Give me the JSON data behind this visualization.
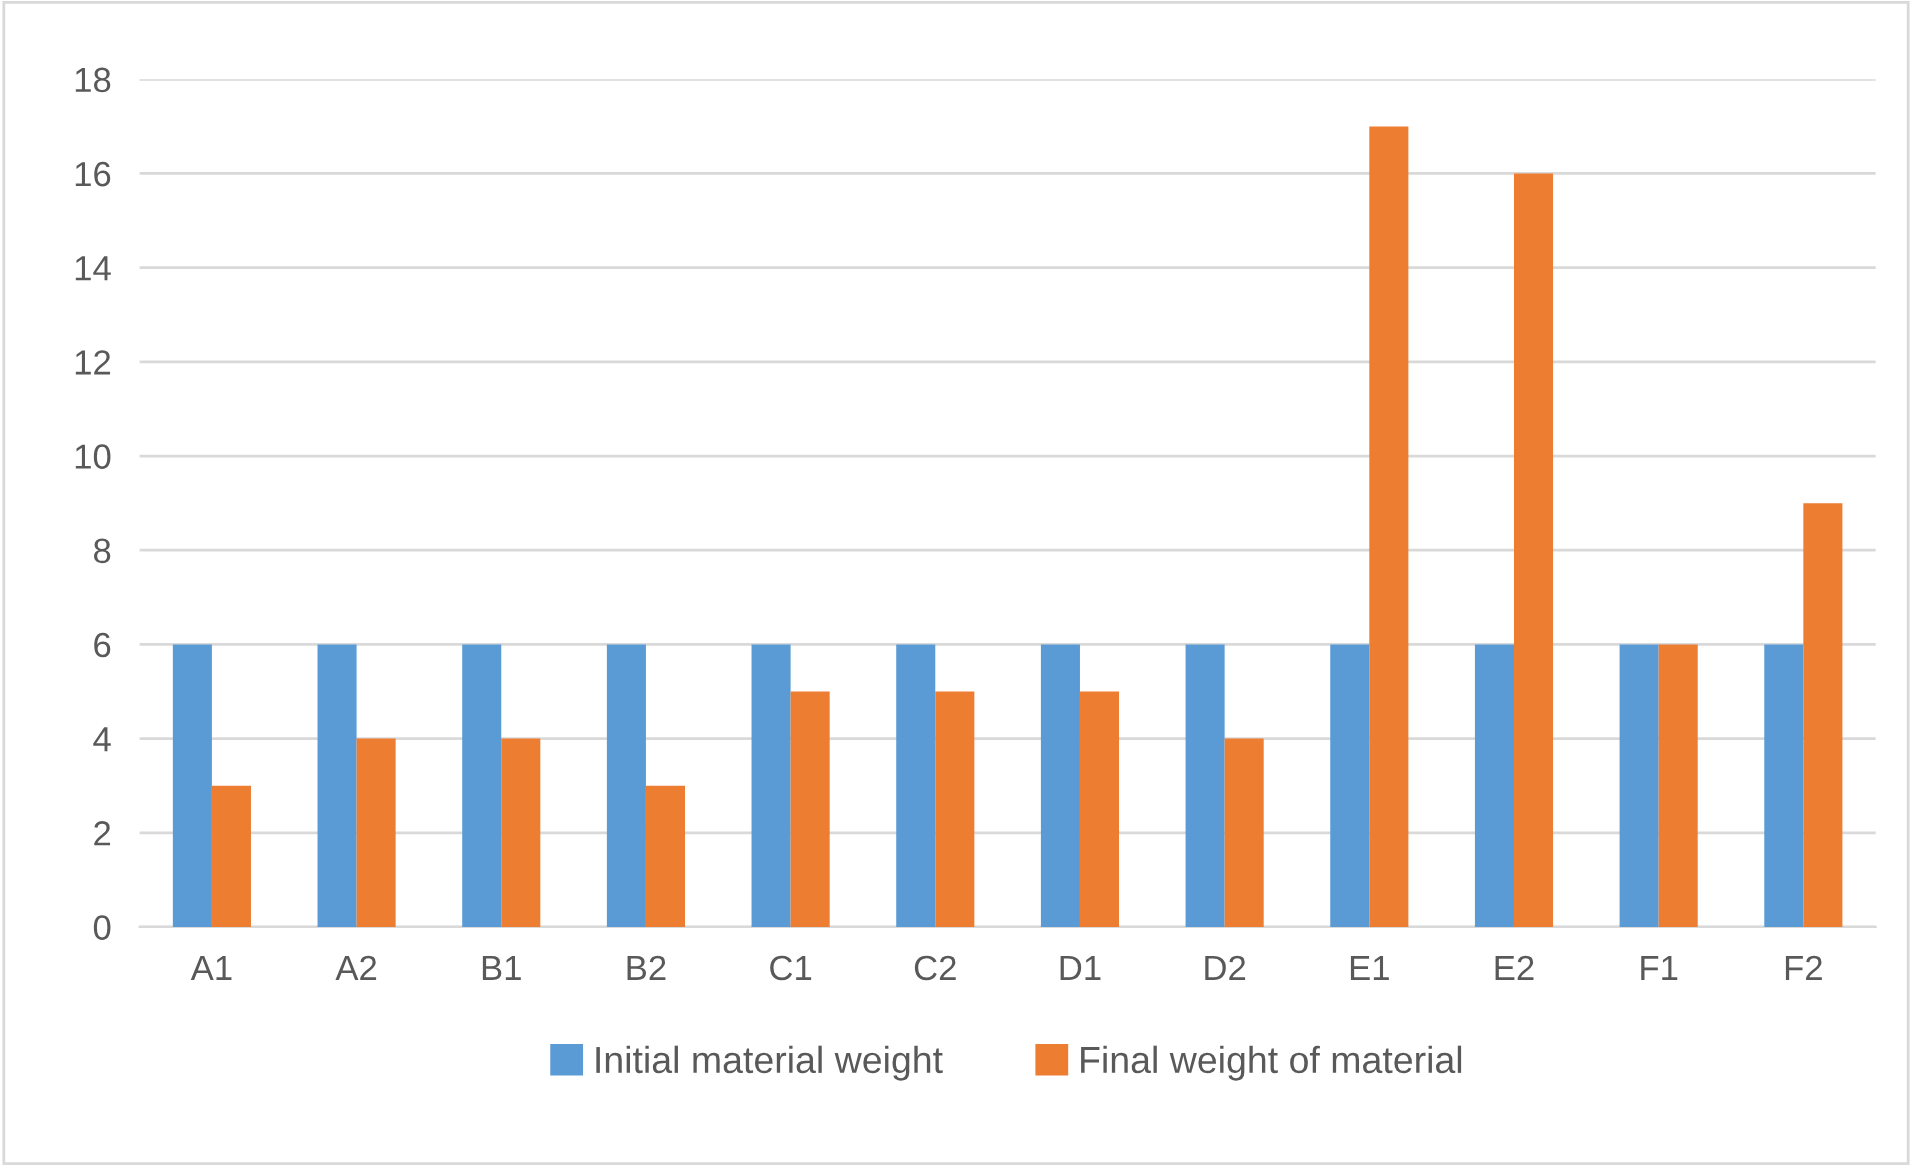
{
  "chart_data": {
    "type": "bar",
    "categories": [
      "A1",
      "A2",
      "B1",
      "B2",
      "C1",
      "C2",
      "D1",
      "D2",
      "E1",
      "E2",
      "F1",
      "F2"
    ],
    "series": [
      {
        "name": "Initial material weight",
        "color": "#5b9bd5",
        "values": [
          6,
          6,
          6,
          6,
          6,
          6,
          6,
          6,
          6,
          6,
          6,
          6
        ]
      },
      {
        "name": "Final weight of material",
        "color": "#ed7d31",
        "values": [
          3,
          4,
          4,
          3,
          5,
          5,
          5,
          4,
          17,
          16,
          6,
          9
        ]
      }
    ],
    "ylim": [
      0,
      18
    ],
    "yticks": [
      0,
      2,
      4,
      6,
      8,
      10,
      12,
      14,
      16,
      18
    ],
    "grid": "y",
    "legend": "bottom"
  }
}
